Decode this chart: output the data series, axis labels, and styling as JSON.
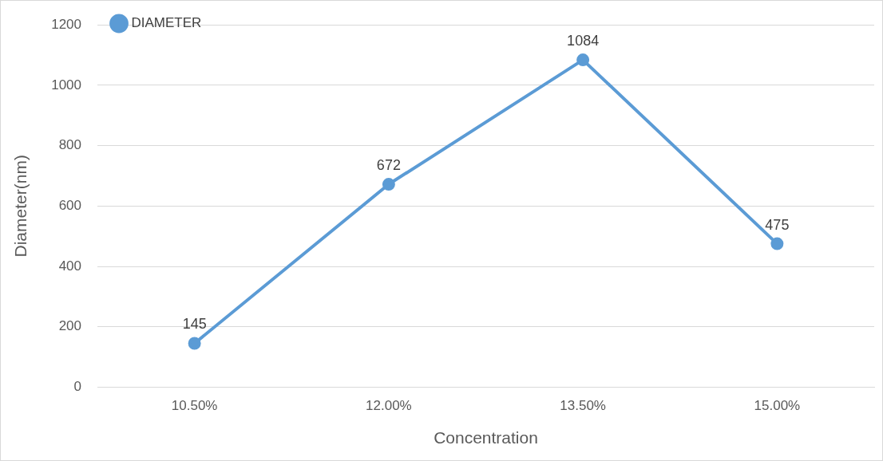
{
  "chart_data": {
    "type": "line",
    "xlabel": "Concentration",
    "ylabel": "Diameter(nm)",
    "categories": [
      "10.50%",
      "12.00%",
      "13.50%",
      "15.00%"
    ],
    "series": [
      {
        "name": "DIAMETER",
        "color": "#5b9bd5",
        "values": [
          145,
          672,
          1084,
          475
        ]
      }
    ],
    "ylim": [
      0,
      1200
    ],
    "yticks": [
      0,
      200,
      400,
      600,
      800,
      1000,
      1200
    ],
    "grid": "y",
    "legend": "top left",
    "marker": "circle",
    "line_style": "solid",
    "data_labels": true
  }
}
